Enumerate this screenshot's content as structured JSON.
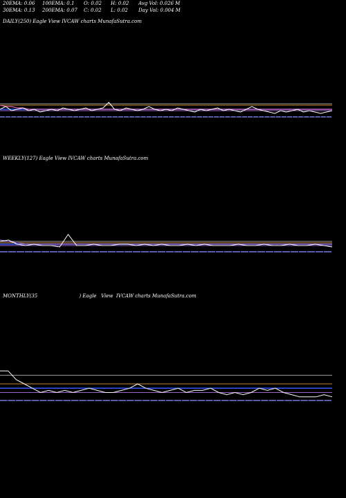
{
  "header": {
    "row1": [
      "20EMA: 0.06",
      "100EMA: 0.1",
      "O: 0.02",
      "H: 0.02",
      "Avg Vol: 0.026  M"
    ],
    "row2": [
      "30EMA: 0.13",
      "200EMA: 0.07",
      "C: 0.02",
      "L: 0.02",
      "Day Vol: 0.004 M"
    ]
  },
  "colors": {
    "background": "#000000",
    "price": "#ffffff",
    "ema_blue": "#3355ff",
    "ema_purple": "#9966cc",
    "ema_gray": "#999999",
    "ema_orange": "#cc8833",
    "ema_pink": "#dd66aa",
    "volume": "#5a5aaa"
  },
  "chart_data": [
    {
      "type": "line",
      "title": "DAILY(250) Eagle   View  IVCAW charts MunafaSutra.com",
      "series": [
        {
          "values": [
            0.021,
            0.023,
            0.02,
            0.021,
            0.022,
            0.02,
            0.021,
            0.019,
            0.02,
            0.021,
            0.02,
            0.022,
            0.021,
            0.02,
            0.021,
            0.022,
            0.02,
            0.021,
            0.022,
            0.026,
            0.021,
            0.02,
            0.022,
            0.021,
            0.02,
            0.021,
            0.023,
            0.021,
            0.02,
            0.021,
            0.02,
            0.022,
            0.021,
            0.02,
            0.019,
            0.021,
            0.02,
            0.021,
            0.022,
            0.02,
            0.021,
            0.02,
            0.019,
            0.021,
            0.023,
            0.021,
            0.02,
            0.019,
            0.018,
            0.02,
            0.019,
            0.02,
            0.021,
            0.019,
            0.02,
            0.019,
            0.018,
            0.019,
            0.02
          ]
        },
        {
          "values": [
            0.024,
            0.023,
            0.023,
            0.022,
            0.022,
            0.021,
            0.021,
            0.021,
            0.021,
            0.021,
            0.021,
            0.021,
            0.021,
            0.021,
            0.021,
            0.021,
            0.021,
            0.021,
            0.021,
            0.021,
            0.021,
            0.021,
            0.021,
            0.021,
            0.021,
            0.021,
            0.021,
            0.021,
            0.021,
            0.021,
            0.021,
            0.021,
            0.021,
            0.021,
            0.021,
            0.021,
            0.021,
            0.021,
            0.021,
            0.021,
            0.021,
            0.021,
            0.021,
            0.021,
            0.021,
            0.021,
            0.021,
            0.021,
            0.021,
            0.021,
            0.021,
            0.021,
            0.021,
            0.021,
            0.021,
            0.021,
            0.021,
            0.021,
            0.021
          ]
        }
      ],
      "levels": [
        0.025,
        0.024,
        0.021,
        0.02
      ]
    },
    {
      "type": "line",
      "title": "WEEKLY(127) Eagle   View  IVCAW charts MunafaSutra.com",
      "series": [
        {
          "values": [
            0.023,
            0.024,
            0.021,
            0.02,
            0.021,
            0.02,
            0.02,
            0.019,
            0.028,
            0.02,
            0.02,
            0.021,
            0.02,
            0.02,
            0.021,
            0.021,
            0.02,
            0.021,
            0.02,
            0.021,
            0.02,
            0.02,
            0.021,
            0.02,
            0.021,
            0.02,
            0.02,
            0.02,
            0.021,
            0.02,
            0.02,
            0.021,
            0.02,
            0.02,
            0.021,
            0.02,
            0.02,
            0.021,
            0.02,
            0.019
          ]
        },
        {
          "values": [
            0.024,
            0.023,
            0.022,
            0.021,
            0.021,
            0.021,
            0.021,
            0.021,
            0.021,
            0.021,
            0.021,
            0.021,
            0.021,
            0.021,
            0.021,
            0.021,
            0.021,
            0.021,
            0.021,
            0.021,
            0.021,
            0.021,
            0.021,
            0.021,
            0.021,
            0.021,
            0.021,
            0.021,
            0.021,
            0.021,
            0.021,
            0.021,
            0.021,
            0.021,
            0.021,
            0.021,
            0.021,
            0.021,
            0.021,
            0.021
          ]
        }
      ],
      "levels": [
        0.023,
        0.022,
        0.021,
        0.02
      ]
    },
    {
      "type": "line",
      "title": "MONTHLY(35                           ) Eagle   View  IVCAW charts MunafaSutra.com",
      "series": [
        {
          "values": [
            0.14,
            0.14,
            0.12,
            0.11,
            0.1,
            0.09,
            0.095,
            0.09,
            0.095,
            0.09,
            0.095,
            0.1,
            0.095,
            0.09,
            0.09,
            0.095,
            0.1,
            0.11,
            0.1,
            0.095,
            0.09,
            0.095,
            0.1,
            0.09,
            0.095,
            0.095,
            0.1,
            0.09,
            0.085,
            0.09,
            0.085,
            0.09,
            0.1,
            0.095,
            0.1,
            0.09,
            0.085,
            0.08,
            0.08,
            0.08,
            0.085,
            0.08
          ]
        }
      ],
      "levels": [
        0.13,
        0.11,
        0.1,
        0.09
      ]
    }
  ]
}
